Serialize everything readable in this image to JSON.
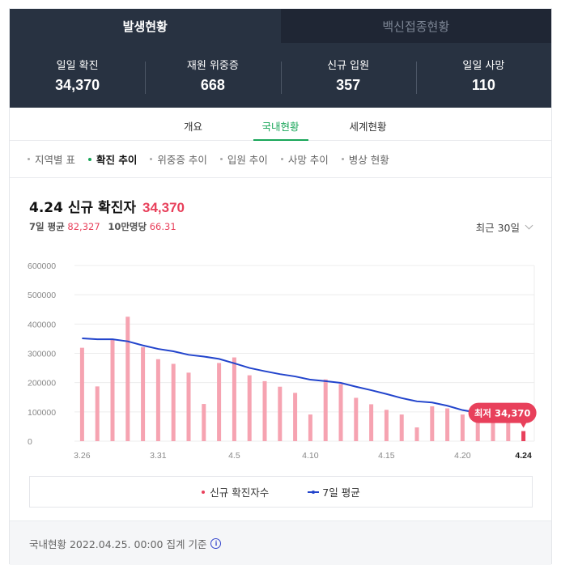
{
  "tabs": [
    {
      "label": "발생현황",
      "active": true
    },
    {
      "label": "백신접종현황",
      "active": false
    }
  ],
  "stats": [
    {
      "label": "일일 확진",
      "value": "34,370"
    },
    {
      "label": "재원 위중증",
      "value": "668"
    },
    {
      "label": "신규 입원",
      "value": "357"
    },
    {
      "label": "일일 사망",
      "value": "110"
    }
  ],
  "subtabs": [
    {
      "label": "개요",
      "active": false
    },
    {
      "label": "국내현황",
      "active": true
    },
    {
      "label": "세계현황",
      "active": false
    }
  ],
  "chips": [
    {
      "label": "지역별 표",
      "active": false
    },
    {
      "label": "확진 추이",
      "active": true
    },
    {
      "label": "위중증 추이",
      "active": false
    },
    {
      "label": "입원 추이",
      "active": false
    },
    {
      "label": "사망 추이",
      "active": false
    },
    {
      "label": "병상 현황",
      "active": false
    }
  ],
  "headline": {
    "title": "4.24 신규 확진자",
    "value": "34,370"
  },
  "subline": {
    "avg_label": "7일 평균",
    "avg_value": "82,327",
    "per_label": "10만명당",
    "per_value": "66.31"
  },
  "period": {
    "label": "최근 30일"
  },
  "colors": {
    "bar": "#f6a3b1",
    "bar_highlight": "#e8405b",
    "line": "#2244cc",
    "accent_green": "#19a659",
    "dark_bg": "#283241"
  },
  "chart_data": {
    "type": "bar",
    "y_ticks": [
      "600000",
      "500000",
      "400000",
      "300000",
      "200000",
      "100000",
      "0"
    ],
    "ylim": [
      0,
      600000
    ],
    "x_tick_labels": [
      "3.26",
      "3.31",
      "4.5",
      "4.10",
      "4.15",
      "4.20",
      "4.24"
    ],
    "x_tick_indices": [
      0,
      5,
      10,
      15,
      20,
      25,
      29
    ],
    "categories": [
      "3.26",
      "3.27",
      "3.28",
      "3.29",
      "3.30",
      "3.31",
      "4.1",
      "4.2",
      "4.3",
      "4.4",
      "4.5",
      "4.6",
      "4.7",
      "4.8",
      "4.9",
      "4.10",
      "4.11",
      "4.12",
      "4.13",
      "4.14",
      "4.15",
      "4.16",
      "4.17",
      "4.18",
      "4.19",
      "4.20",
      "4.21",
      "4.22",
      "4.23",
      "4.24"
    ],
    "series": [
      {
        "name": "신규 확진자수",
        "type": "bar",
        "values": [
          319000,
          187000,
          347000,
          425000,
          321000,
          280000,
          264000,
          234000,
          127000,
          267000,
          286000,
          225000,
          205000,
          186000,
          165000,
          91000,
          211000,
          195000,
          148000,
          126000,
          107000,
          91000,
          47000,
          119000,
          112000,
          91000,
          76000,
          75000,
          82000,
          34370
        ]
      },
      {
        "name": "7일 평균",
        "type": "line",
        "values": [
          351000,
          348000,
          348000,
          341000,
          327000,
          315000,
          307000,
          295000,
          289000,
          281000,
          266000,
          250000,
          239000,
          229000,
          221000,
          210000,
          205000,
          199000,
          186000,
          174000,
          161000,
          147000,
          136000,
          132000,
          121000,
          106000,
          97000,
          91000,
          89000,
          82327
        ]
      }
    ],
    "annotation": {
      "label": "최저 34,370",
      "index": 29
    },
    "legend": [
      "신규 확진자수",
      "7일 평균"
    ],
    "legend_position": "bottom"
  },
  "footer": {
    "text": "국내현황 2022.04.25. 00:00 집계 기준",
    "icon": "info-icon"
  }
}
